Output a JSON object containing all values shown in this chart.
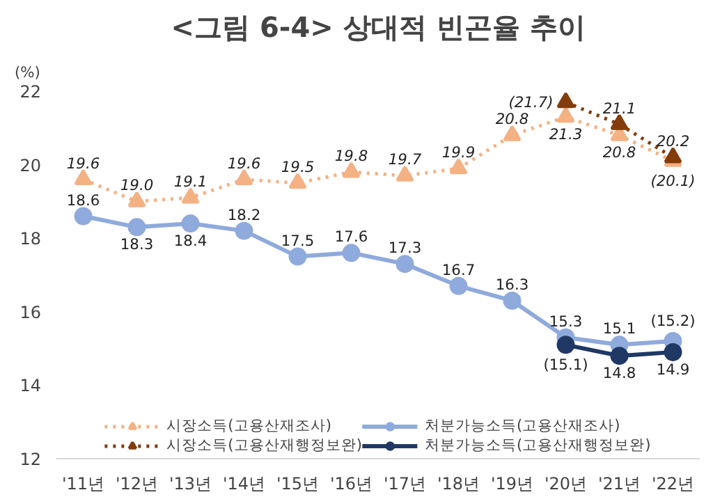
{
  "chart_data": {
    "type": "line",
    "title": "<그림 6-4> 상대적 빈곤율 추이",
    "ylabel": "(%)",
    "categories": [
      "'11년",
      "'12년",
      "'13년",
      "'14년",
      "'15년",
      "'16년",
      "'17년",
      "'18년",
      "'19년",
      "'20년",
      "'21년",
      "'22년"
    ],
    "ylim": [
      12,
      22
    ],
    "yticks": [
      12,
      14,
      16,
      18,
      20,
      22
    ],
    "grid": false,
    "legend": "bottom",
    "series": [
      {
        "name": "시장소득(고용산재조사)",
        "color": "#f4b183",
        "marker": "triangle",
        "line_style": "dotted",
        "values": [
          19.6,
          19.0,
          19.1,
          19.6,
          19.5,
          19.8,
          19.7,
          19.9,
          20.8,
          21.3,
          20.8,
          20.1
        ],
        "value_labels": [
          "19.6",
          "19.0",
          "19.1",
          "19.6",
          "19.5",
          "19.8",
          "19.7",
          "19.9",
          "20.8",
          "21.3",
          "20.8",
          "(20.1)"
        ]
      },
      {
        "name": "시장소득(고용산재행정보완)",
        "color": "#843c0c",
        "marker": "triangle",
        "line_style": "dotted",
        "values": [
          null,
          null,
          null,
          null,
          null,
          null,
          null,
          null,
          null,
          21.7,
          21.1,
          20.2
        ],
        "value_labels": [
          null,
          null,
          null,
          null,
          null,
          null,
          null,
          null,
          null,
          "(21.7)",
          "21.1",
          "20.2"
        ]
      },
      {
        "name": "처분가능소득(고용산재조사)",
        "color": "#8faadc",
        "marker": "circle",
        "line_style": "solid",
        "values": [
          18.6,
          18.3,
          18.4,
          18.2,
          17.5,
          17.6,
          17.3,
          16.7,
          16.3,
          15.3,
          15.1,
          15.2
        ],
        "value_labels": [
          "18.6",
          "18.3",
          "18.4",
          "18.2",
          "17.5",
          "17.6",
          "17.3",
          "16.7",
          "16.3",
          "15.3",
          "15.1",
          "(15.2)"
        ]
      },
      {
        "name": "처분가능소득(고용산재행정보완)",
        "color": "#1f3864",
        "marker": "circle",
        "line_style": "solid",
        "values": [
          null,
          null,
          null,
          null,
          null,
          null,
          null,
          null,
          null,
          15.1,
          14.8,
          14.9
        ],
        "value_labels": [
          null,
          null,
          null,
          null,
          null,
          null,
          null,
          null,
          null,
          "(15.1)",
          "14.8",
          "14.9"
        ]
      }
    ]
  }
}
